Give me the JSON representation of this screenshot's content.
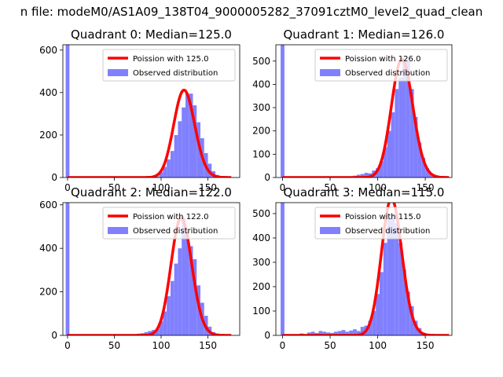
{
  "figure": {
    "suptitle": "n file: modeM0/AS1A09_138T04_9000005282_37091cztM0_level2_quad_clean"
  },
  "colors": {
    "model": "#ff0000",
    "observed": "#8080ff"
  },
  "chart_data": [
    {
      "type": "bar",
      "title": "Quadrant 0: Median=125.0",
      "xlabel": "",
      "ylabel": "",
      "xlim": [
        -5,
        184
      ],
      "ylim": [
        0,
        625
      ],
      "xticks": [
        0,
        50,
        100,
        150
      ],
      "yticks": [
        0,
        200,
        400,
        600
      ],
      "legend_position": "top-right",
      "series": [
        {
          "name": "Poission with 125.0",
          "kind": "line",
          "mean": 125.0
        },
        {
          "name": "Observed distribution",
          "kind": "histogram",
          "bin_width": 4,
          "bins": [
            [
              -2,
              2,
              630
            ],
            [
              94,
              98,
              5
            ],
            [
              98,
              102,
              25
            ],
            [
              102,
              106,
              50
            ],
            [
              106,
              110,
              85
            ],
            [
              110,
              114,
              125
            ],
            [
              114,
              118,
              200
            ],
            [
              118,
              122,
              265
            ],
            [
              122,
              126,
              330
            ],
            [
              126,
              130,
              395
            ],
            [
              130,
              134,
              395
            ],
            [
              134,
              138,
              340
            ],
            [
              138,
              142,
              260
            ],
            [
              142,
              146,
              185
            ],
            [
              146,
              150,
              115
            ],
            [
              150,
              154,
              65
            ],
            [
              154,
              158,
              30
            ],
            [
              158,
              162,
              12
            ],
            [
              162,
              166,
              4
            ]
          ]
        }
      ]
    },
    {
      "type": "bar",
      "title": "Quadrant 1: Median=126.0",
      "xlabel": "",
      "ylabel": "",
      "xlim": [
        -7,
        178
      ],
      "ylim": [
        0,
        570
      ],
      "xticks": [
        0,
        50,
        100,
        150
      ],
      "yticks": [
        0,
        100,
        200,
        300,
        400,
        500
      ],
      "legend_position": "top-right",
      "series": [
        {
          "name": "Poission with 126.0",
          "kind": "line",
          "mean": 126.0
        },
        {
          "name": "Observed distribution",
          "kind": "histogram",
          "bin_width": 4,
          "bins": [
            [
              -2,
              2,
              570
            ],
            [
              74,
              78,
              8
            ],
            [
              78,
              82,
              12
            ],
            [
              82,
              86,
              15
            ],
            [
              86,
              90,
              20
            ],
            [
              90,
              94,
              18
            ],
            [
              94,
              98,
              30
            ],
            [
              98,
              102,
              40
            ],
            [
              102,
              106,
              70
            ],
            [
              106,
              110,
              130
            ],
            [
              110,
              114,
              200
            ],
            [
              114,
              118,
              280
            ],
            [
              118,
              122,
              380
            ],
            [
              122,
              126,
              430
            ],
            [
              126,
              130,
              510
            ],
            [
              130,
              134,
              500
            ],
            [
              134,
              138,
              380
            ],
            [
              138,
              142,
              260
            ],
            [
              142,
              146,
              150
            ],
            [
              146,
              150,
              85
            ],
            [
              150,
              154,
              40
            ],
            [
              154,
              158,
              15
            ],
            [
              158,
              162,
              5
            ]
          ]
        }
      ]
    },
    {
      "type": "bar",
      "title": "Quadrant 2: Median=122.0",
      "xlabel": "",
      "ylabel": "",
      "xlim": [
        -5,
        184
      ],
      "ylim": [
        0,
        610
      ],
      "xticks": [
        0,
        50,
        100,
        150
      ],
      "yticks": [
        0,
        200,
        400,
        600
      ],
      "legend_position": "top-right",
      "series": [
        {
          "name": "Poission with 122.0",
          "kind": "line",
          "mean": 122.0
        },
        {
          "name": "Observed distribution",
          "kind": "histogram",
          "bin_width": 4,
          "bins": [
            [
              -2,
              2,
              610
            ],
            [
              70,
              74,
              5
            ],
            [
              74,
              78,
              8
            ],
            [
              78,
              82,
              10
            ],
            [
              82,
              86,
              15
            ],
            [
              86,
              90,
              20
            ],
            [
              90,
              94,
              25
            ],
            [
              94,
              98,
              30
            ],
            [
              98,
              102,
              65
            ],
            [
              102,
              106,
              110
            ],
            [
              106,
              110,
              180
            ],
            [
              110,
              114,
              250
            ],
            [
              114,
              118,
              330
            ],
            [
              118,
              122,
              400
            ],
            [
              122,
              126,
              540
            ],
            [
              126,
              130,
              470
            ],
            [
              130,
              134,
              410
            ],
            [
              134,
              138,
              350
            ],
            [
              138,
              142,
              230
            ],
            [
              142,
              146,
              150
            ],
            [
              146,
              150,
              90
            ],
            [
              150,
              154,
              40
            ],
            [
              154,
              158,
              15
            ],
            [
              158,
              162,
              5
            ]
          ]
        }
      ]
    },
    {
      "type": "bar",
      "title": "Quadrant 3: Median=115.0",
      "xlabel": "",
      "ylabel": "",
      "xlim": [
        -7,
        178
      ],
      "ylim": [
        0,
        545
      ],
      "xticks": [
        0,
        50,
        100,
        150
      ],
      "yticks": [
        0,
        100,
        200,
        300,
        400,
        500
      ],
      "legend_position": "top-right",
      "series": [
        {
          "name": "Poission with 115.0",
          "kind": "line",
          "mean": 115.0
        },
        {
          "name": "Observed distribution",
          "kind": "histogram",
          "bin_width": 4,
          "bins": [
            [
              -2,
              2,
              545
            ],
            [
              18,
              22,
              8
            ],
            [
              22,
              26,
              5
            ],
            [
              26,
              30,
              12
            ],
            [
              30,
              34,
              15
            ],
            [
              34,
              38,
              10
            ],
            [
              38,
              42,
              18
            ],
            [
              42,
              46,
              15
            ],
            [
              46,
              50,
              12
            ],
            [
              50,
              54,
              10
            ],
            [
              54,
              58,
              15
            ],
            [
              58,
              62,
              18
            ],
            [
              62,
              66,
              22
            ],
            [
              66,
              70,
              15
            ],
            [
              70,
              74,
              20
            ],
            [
              74,
              78,
              25
            ],
            [
              78,
              82,
              18
            ],
            [
              82,
              86,
              35
            ],
            [
              86,
              90,
              40
            ],
            [
              90,
              94,
              60
            ],
            [
              94,
              98,
              100
            ],
            [
              98,
              102,
              170
            ],
            [
              102,
              106,
              260
            ],
            [
              106,
              110,
              380
            ],
            [
              110,
              114,
              480
            ],
            [
              114,
              118,
              500
            ],
            [
              118,
              122,
              460
            ],
            [
              122,
              126,
              380
            ],
            [
              126,
              130,
              270
            ],
            [
              130,
              134,
              180
            ],
            [
              134,
              138,
              120
            ],
            [
              138,
              142,
              60
            ],
            [
              142,
              146,
              30
            ],
            [
              146,
              150,
              10
            ]
          ]
        }
      ]
    }
  ]
}
